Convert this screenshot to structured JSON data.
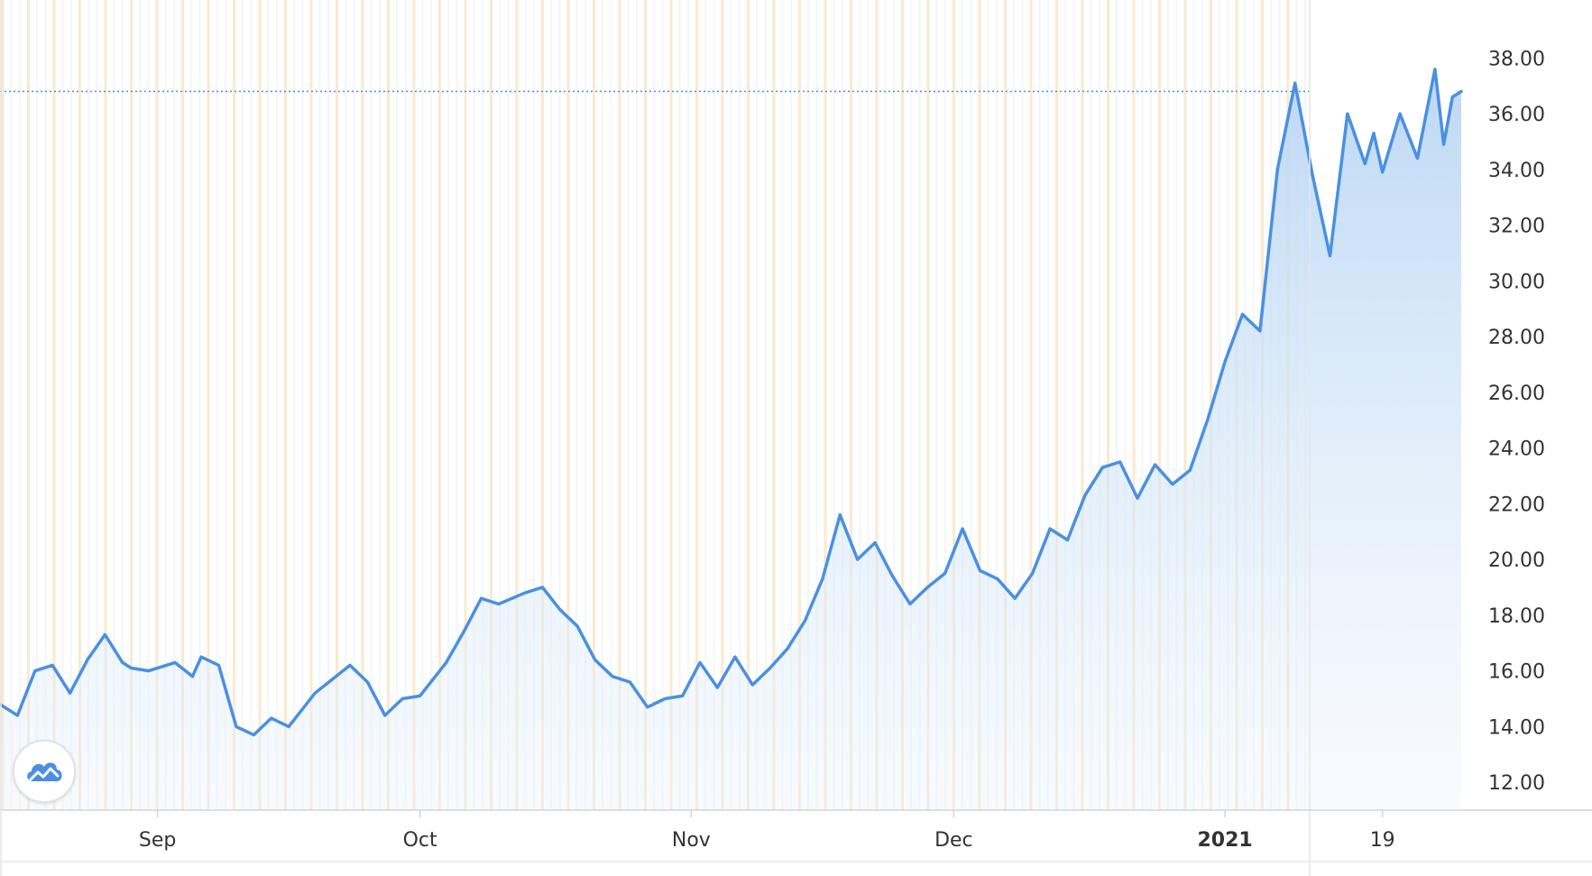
{
  "chart_data": {
    "type": "area",
    "title": "",
    "xlabel": "",
    "ylabel": "",
    "ylim": [
      11,
      39.5
    ],
    "x_range": [
      "2020-08-14",
      "2021-01-28"
    ],
    "y_ticks": [
      "12.00",
      "14.00",
      "16.00",
      "18.00",
      "20.00",
      "22.00",
      "24.00",
      "26.00",
      "28.00",
      "30.00",
      "32.00",
      "34.00",
      "36.00",
      "38.00"
    ],
    "x_ticks": [
      {
        "label": "Sep",
        "date": "2020-09-01",
        "bold": false
      },
      {
        "label": "Oct",
        "date": "2020-10-01",
        "bold": false
      },
      {
        "label": "Nov",
        "date": "2020-11-01",
        "bold": false
      },
      {
        "label": "Dec",
        "date": "2020-12-01",
        "bold": false
      },
      {
        "label": "2021",
        "date": "2021-01-01",
        "bold": true
      },
      {
        "label": "19",
        "date": "2021-01-19",
        "bold": false
      }
    ],
    "reference_line": {
      "value": 36.8,
      "style": "dotted"
    },
    "grid": "vertical",
    "colors": {
      "line": "#4a90e2",
      "fill": "#cfe3f7",
      "ref_line": "#4a90e2",
      "grid": "#fbeed9"
    },
    "series": [
      {
        "x": [
          "2020-08-14",
          "2020-08-16",
          "2020-08-18",
          "2020-08-20",
          "2020-08-22",
          "2020-08-24",
          "2020-08-26",
          "2020-08-28",
          "2020-08-29",
          "2020-08-31",
          "2020-09-03",
          "2020-09-05",
          "2020-09-06",
          "2020-09-08",
          "2020-09-10",
          "2020-09-12",
          "2020-09-14",
          "2020-09-16",
          "2020-09-19",
          "2020-09-21",
          "2020-09-23",
          "2020-09-25",
          "2020-09-27",
          "2020-09-29",
          "2020-10-01",
          "2020-10-04",
          "2020-10-06",
          "2020-10-08",
          "2020-10-10",
          "2020-10-13",
          "2020-10-15",
          "2020-10-17",
          "2020-10-19",
          "2020-10-21",
          "2020-10-23",
          "2020-10-25",
          "2020-10-27",
          "2020-10-29",
          "2020-10-31",
          "2020-11-02",
          "2020-11-04",
          "2020-11-06",
          "2020-11-08",
          "2020-11-10",
          "2020-11-12",
          "2020-11-14",
          "2020-11-16",
          "2020-11-18",
          "2020-11-20",
          "2020-11-22",
          "2020-11-24",
          "2020-11-26",
          "2020-11-28",
          "2020-11-30",
          "2020-12-02",
          "2020-12-04",
          "2020-12-06",
          "2020-12-08",
          "2020-12-10",
          "2020-12-12",
          "2020-12-14",
          "2020-12-16",
          "2020-12-18",
          "2020-12-20",
          "2020-12-22",
          "2020-12-24",
          "2020-12-26",
          "2020-12-28",
          "2020-12-30",
          "2021-01-01",
          "2021-01-03",
          "2021-01-05",
          "2021-01-07",
          "2021-01-09",
          "2021-01-11",
          "2021-01-13",
          "2021-01-15",
          "2021-01-17",
          "2021-01-18",
          "2021-01-19",
          "2021-01-21",
          "2021-01-23",
          "2021-01-25",
          "2021-01-26",
          "2021-01-27",
          "2021-01-28"
        ],
        "values": [
          14.8,
          14.4,
          16.0,
          16.2,
          15.2,
          16.4,
          17.3,
          16.3,
          16.1,
          16.0,
          16.3,
          15.8,
          16.5,
          16.2,
          14.0,
          13.7,
          14.3,
          14.0,
          15.2,
          15.7,
          16.2,
          15.6,
          14.4,
          15.0,
          15.1,
          16.3,
          17.4,
          18.6,
          18.4,
          18.8,
          19.0,
          18.2,
          17.6,
          16.4,
          15.8,
          15.6,
          14.7,
          15.0,
          15.1,
          16.3,
          15.4,
          16.5,
          15.5,
          16.1,
          16.8,
          17.8,
          19.3,
          21.6,
          20.0,
          20.6,
          19.4,
          18.4,
          19.0,
          19.5,
          21.1,
          19.6,
          19.3,
          18.6,
          19.5,
          21.1,
          20.7,
          22.3,
          23.3,
          23.5,
          22.2,
          23.4,
          22.7,
          23.2,
          25.0,
          27.1,
          28.8,
          28.2,
          34.0,
          37.1,
          33.8,
          30.9,
          36.0,
          34.2,
          35.3,
          33.9,
          36.0,
          34.4,
          37.6,
          34.9,
          36.6,
          36.8
        ]
      }
    ]
  }
}
